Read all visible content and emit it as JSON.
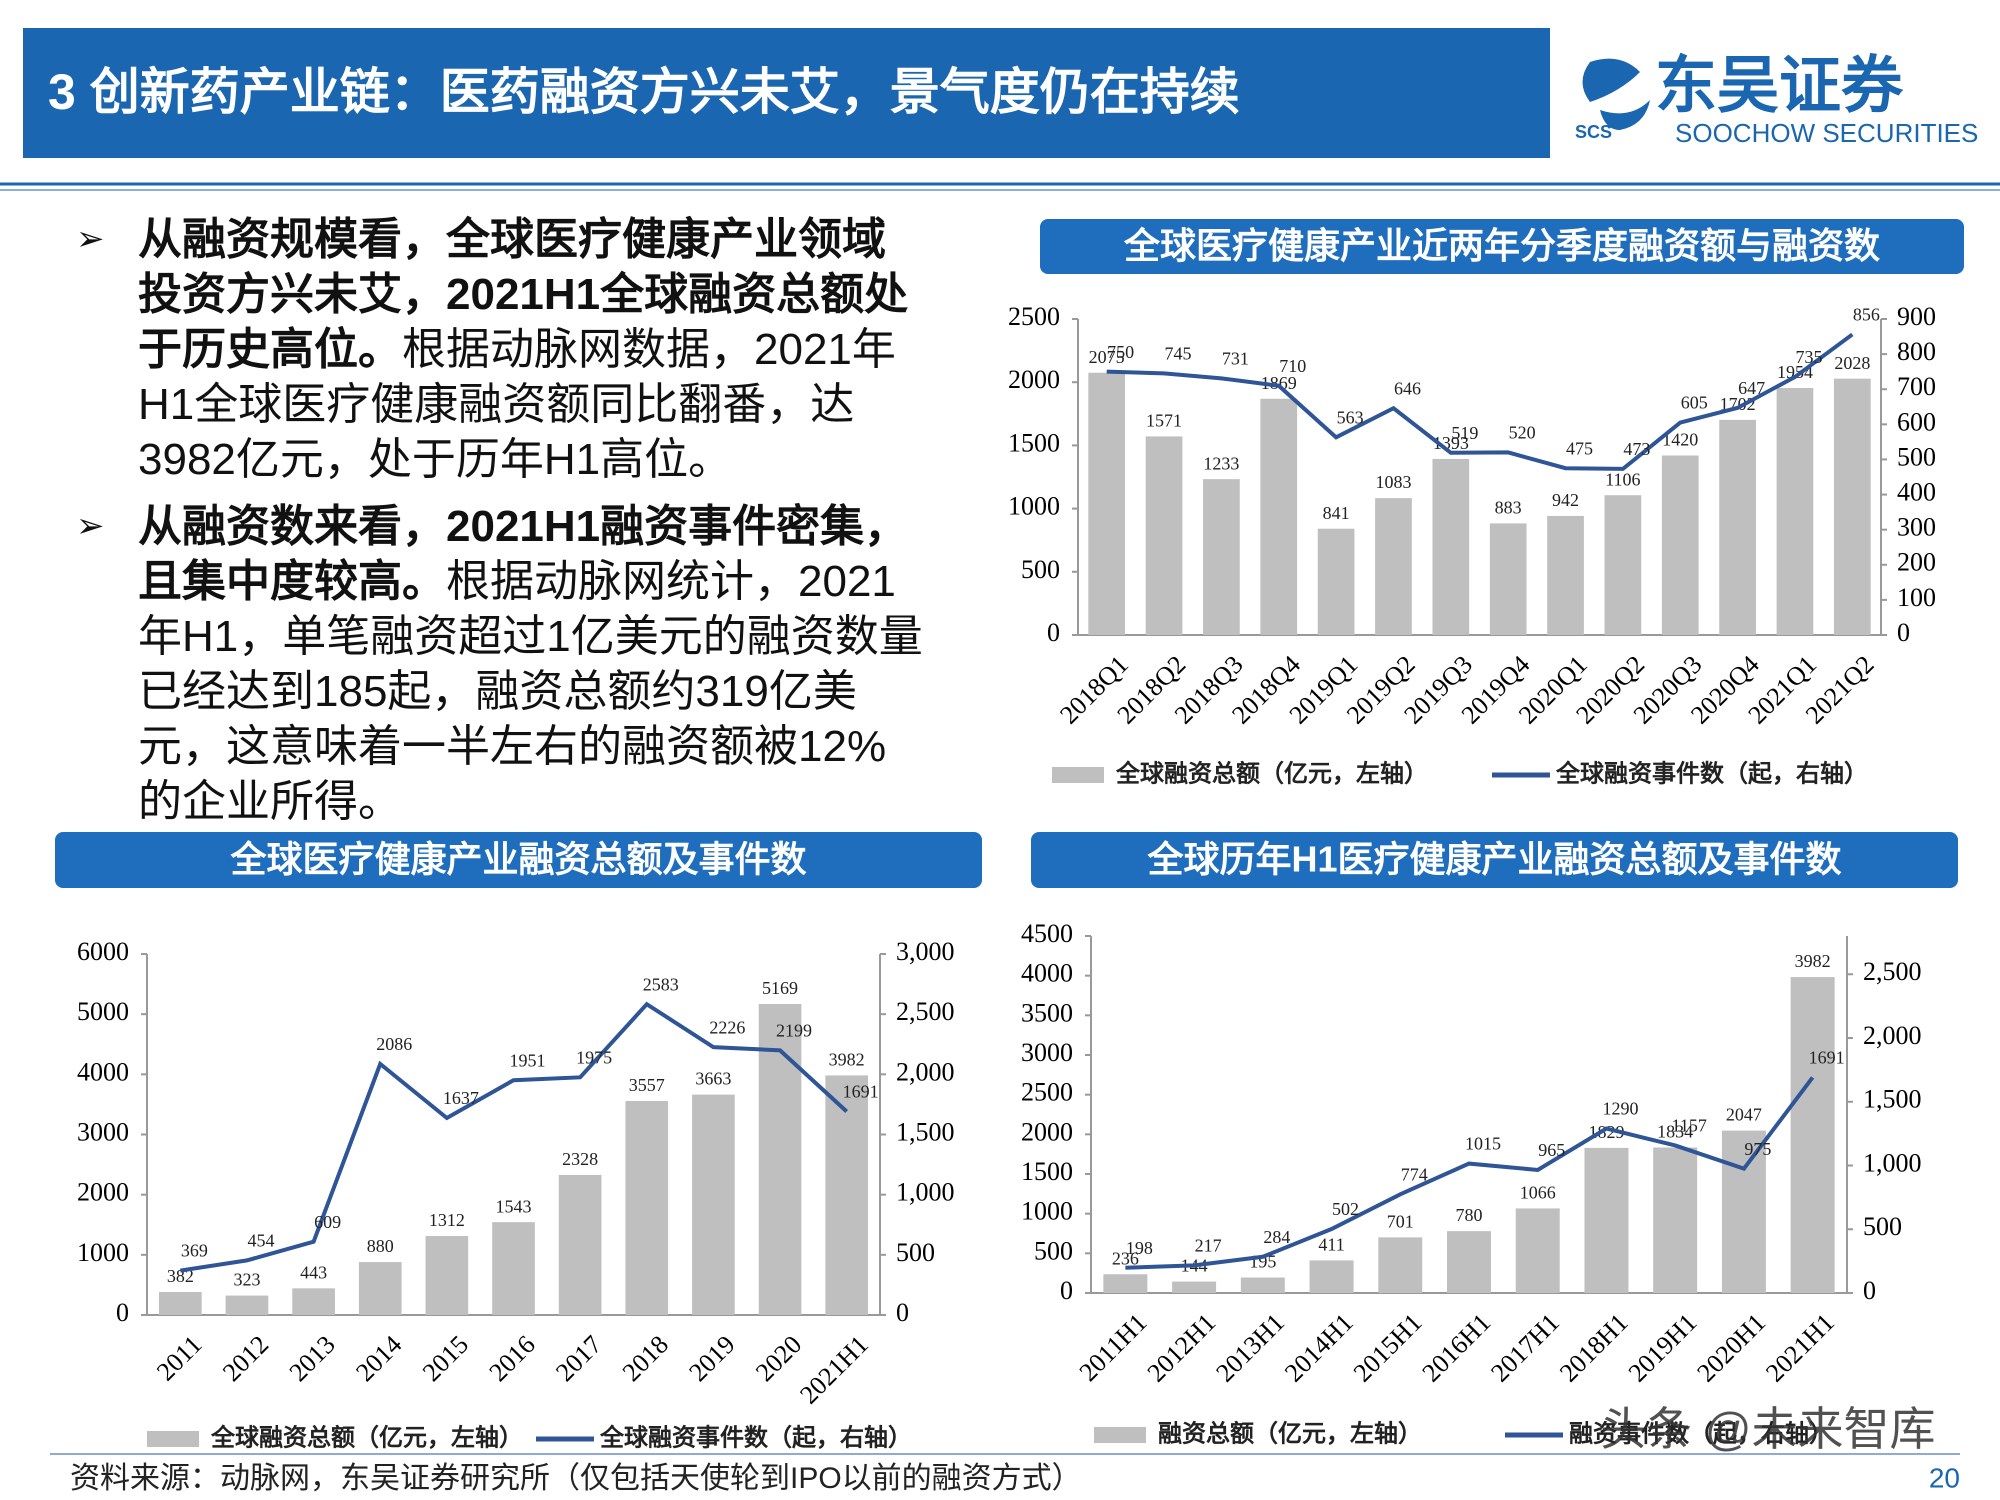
{
  "header": {
    "title": "3 创新药产业链：医药融资方兴未艾，景气度仍在持续",
    "logo": {
      "name": "东吴证券",
      "english": "SOOCHOW SECURITIES",
      "mark": "SCS"
    }
  },
  "bullets": [
    {
      "bold": "从融资规模看，全球医疗健康产业领域投资方兴未艾，2021H1全球融资总额处于历史高位。",
      "text": "根据动脉网数据，2021年H1全球医疗健康融资额同比翻番，达3982亿元，处于历年H1高位。"
    },
    {
      "bold": "从融资数来看，2021H1融资事件密集，且集中度较高。",
      "text": "根据动脉网统计，2021年H1，单笔融资超过1亿美元的融资数量已经达到185起，融资总额约319亿美元，这意味着一半左右的融资额被12%的企业所得。"
    }
  ],
  "chart_data": [
    {
      "type": "bar_line",
      "title": "全球医疗健康产业近两年分季度融资额与融资数",
      "categories": [
        "2018Q1",
        "2018Q2",
        "2018Q3",
        "2018Q4",
        "2019Q1",
        "2019Q2",
        "2019Q3",
        "2019Q4",
        "2020Q1",
        "2020Q2",
        "2020Q3",
        "2020Q4",
        "2021Q1",
        "2021Q2"
      ],
      "series": [
        {
          "name": "全球融资总额（亿元，左轴）",
          "type": "bar",
          "color": "#bfbfbf",
          "values": [
            2075,
            1571,
            1233,
            1869,
            841,
            1083,
            1393,
            883,
            942,
            1106,
            1420,
            1702,
            1954,
            2028
          ]
        },
        {
          "name": "全球融资事件数（起，右轴）",
          "type": "line",
          "axis": "y2",
          "color": "#2f5597",
          "values": [
            750,
            745,
            731,
            710,
            563,
            646,
            519,
            520,
            475,
            473,
            605,
            647,
            735,
            856
          ]
        }
      ],
      "ylim": [
        0,
        2500
      ],
      "yticks": [
        0,
        500,
        1000,
        1500,
        2000,
        2500
      ],
      "y2lim": [
        0,
        900
      ],
      "y2ticks": [
        0,
        100,
        200,
        300,
        400,
        500,
        600,
        700,
        800,
        900
      ]
    },
    {
      "type": "bar_line",
      "title": "全球医疗健康产业融资总额及事件数",
      "categories": [
        "2011",
        "2012",
        "2013",
        "2014",
        "2015",
        "2016",
        "2017",
        "2018",
        "2019",
        "2020",
        "2021H1"
      ],
      "series": [
        {
          "name": "全球融资总额（亿元，左轴）",
          "type": "bar",
          "color": "#bfbfbf",
          "values": [
            382,
            323,
            443,
            880,
            1312,
            1543,
            2328,
            3557,
            3663,
            5169,
            3982
          ]
        },
        {
          "name": "全球融资事件数（起，右轴）",
          "type": "line",
          "axis": "y2",
          "color": "#2f5597",
          "values": [
            369,
            454,
            609,
            2086,
            1637,
            1951,
            1975,
            2583,
            2226,
            2199,
            1691
          ]
        }
      ],
      "ylim": [
        0,
        6000
      ],
      "yticks": [
        0,
        1000,
        2000,
        3000,
        4000,
        5000,
        6000
      ],
      "y2lim": [
        0,
        3000
      ],
      "y2ticks": [
        0,
        500,
        {
          "value": 1000,
          "label": "1,000"
        },
        {
          "value": 1500,
          "label": "1,500"
        },
        {
          "value": 2000,
          "label": "2,000"
        },
        {
          "value": 2500,
          "label": "2,500"
        },
        {
          "value": 3000,
          "label": "3,000"
        }
      ]
    },
    {
      "type": "bar_line",
      "title": "全球历年H1医疗健康产业融资总额及事件数",
      "categories": [
        "2011H1",
        "2012H1",
        "2013H1",
        "2014H1",
        "2015H1",
        "2016H1",
        "2017H1",
        "2018H1",
        "2019H1",
        "2020H1",
        "2021H1"
      ],
      "series": [
        {
          "name": "融资总额（亿元，左轴）",
          "type": "bar",
          "color": "#bfbfbf",
          "values": [
            236,
            144,
            195,
            411,
            701,
            780,
            1066,
            1829,
            1834,
            2047,
            3982
          ]
        },
        {
          "name": "融资事件数（起，右轴）",
          "type": "line",
          "axis": "y2",
          "color": "#2f5597",
          "values": [
            198,
            217,
            284,
            502,
            774,
            1015,
            965,
            1290,
            1157,
            975,
            1691
          ]
        }
      ],
      "ylim": [
        0,
        4500
      ],
      "yticks": [
        0,
        500,
        1000,
        1500,
        2000,
        2500,
        3000,
        3500,
        4000,
        4500
      ],
      "y2lim": [
        0,
        2800
      ],
      "y2ticks": [
        0,
        500,
        {
          "value": 1000,
          "label": "1,000"
        },
        {
          "value": 1500,
          "label": "1,500"
        },
        {
          "value": 2000,
          "label": "2,000"
        },
        {
          "value": 2500,
          "label": "2,500"
        }
      ]
    }
  ],
  "footer": {
    "source": "资料来源：动脉网，东吴证券研究所（仅包括天使轮到IPO以前的融资方式）",
    "page": "20"
  },
  "watermark": "头条 @未来智库"
}
